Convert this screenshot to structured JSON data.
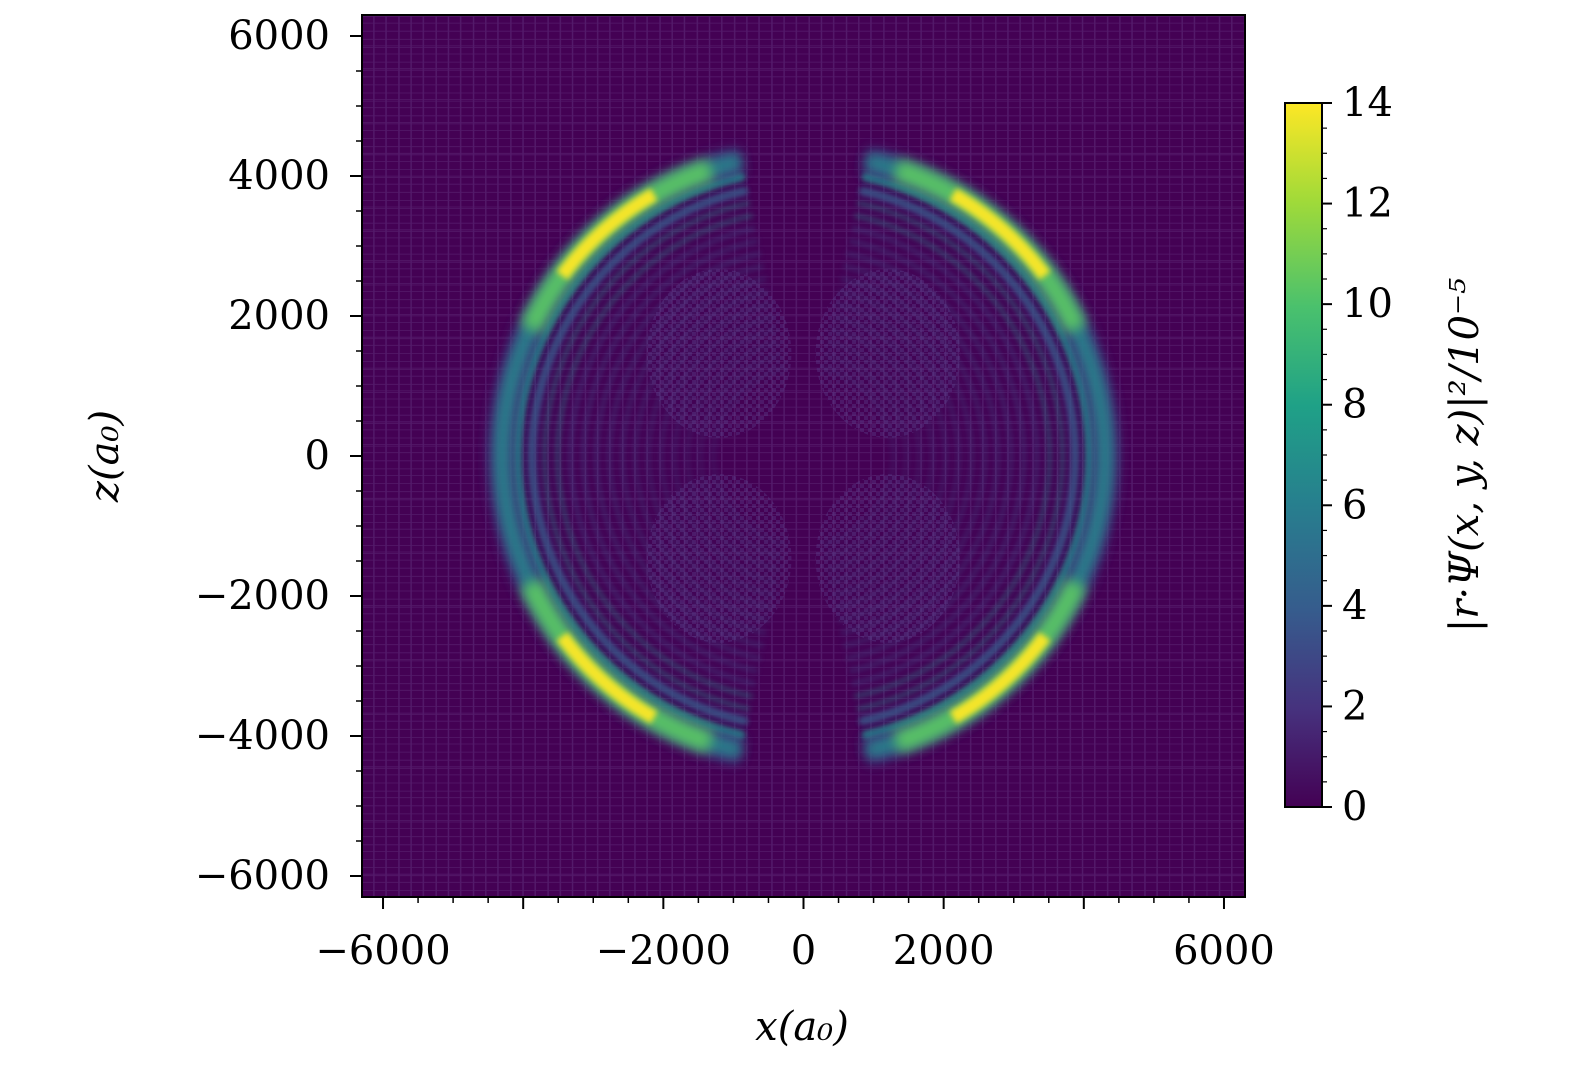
{
  "chart_data": {
    "type": "heatmap",
    "title": "",
    "xlabel": "x(a₀)",
    "ylabel": "z(a₀)",
    "xlim": [
      -6300,
      6300
    ],
    "ylim": [
      -6300,
      6300
    ],
    "x_ticks": [
      -6000,
      -2000,
      0,
      2000,
      6000
    ],
    "y_ticks": [
      -6000,
      -4000,
      -2000,
      0,
      2000,
      4000,
      6000
    ],
    "x_tick_labels": [
      "−6000",
      "−2000",
      "0",
      "2000",
      "6000"
    ],
    "y_tick_labels": [
      "−6000",
      "−4000",
      "−2000",
      "0",
      "2000",
      "4000",
      "6000"
    ],
    "grid": false,
    "colormap": "viridis",
    "colorbar": {
      "label": "|r·Ψ(x, y, z)|²/10⁻⁵",
      "range": [
        0,
        14
      ],
      "ticks": [
        0,
        2,
        4,
        6,
        8,
        10,
        12,
        14
      ],
      "tick_labels": [
        "0",
        "2",
        "4",
        "6",
        "8",
        "10",
        "12",
        "14"
      ]
    },
    "features": {
      "outer_shell_radius": 4300,
      "gap_half_angle_deg": 12,
      "peak_value": 14,
      "background_value": 0
    },
    "colors": {
      "background": "#440154",
      "low": "#3b528b",
      "mid": "#21918c",
      "high": "#5ec962",
      "peak": "#fde725"
    }
  }
}
